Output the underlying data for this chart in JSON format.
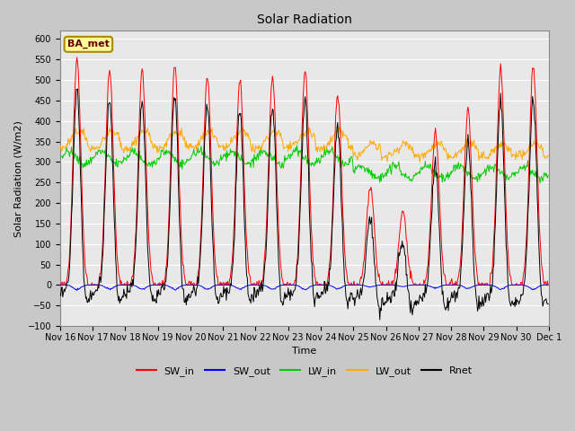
{
  "title": "Solar Radiation",
  "ylabel": "Solar Radiation (W/m2)",
  "xlabel": "Time",
  "station_label": "BA_met",
  "ylim": [
    -100,
    620
  ],
  "yticks": [
    -100,
    -50,
    0,
    50,
    100,
    150,
    200,
    250,
    300,
    350,
    400,
    450,
    500,
    550,
    600
  ],
  "n_days": 15,
  "colors": {
    "SW_in": "#ff0000",
    "SW_out": "#0000ff",
    "LW_in": "#00cc00",
    "LW_out": "#ffaa00",
    "Rnet": "#000000"
  },
  "axes_bg_color": "#e8e8e8",
  "grid_color": "#ffffff",
  "legend_bg": "#ffff99",
  "legend_edge": "#aa8800",
  "sw_in_peaks": [
    555,
    525,
    525,
    535,
    510,
    500,
    510,
    525,
    465,
    240,
    180,
    375,
    430,
    525,
    535
  ]
}
